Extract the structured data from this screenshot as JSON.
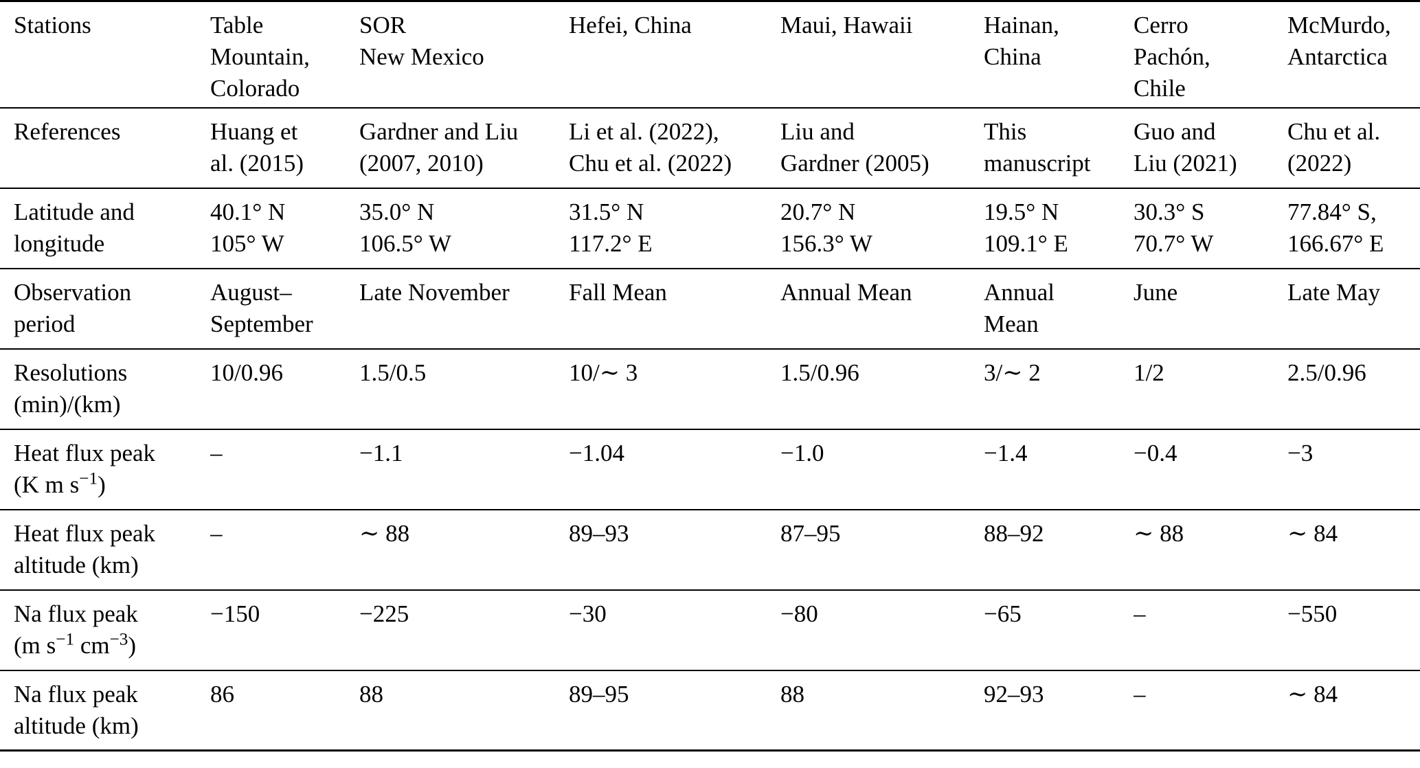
{
  "table": {
    "columns_count": 8,
    "rows": [
      {
        "id": "stations",
        "cells": [
          "Stations",
          "Table\nMountain,\nColorado",
          "SOR\nNew Mexico",
          "Hefei, China",
          "Maui, Hawaii",
          "Hainan,\nChina",
          "Cerro\nPachón,\nChile",
          "McMurdo,\nAntarctica"
        ]
      },
      {
        "id": "references",
        "cells": [
          "References",
          "Huang et\nal. (2015)",
          "Gardner and Liu\n(2007, 2010)",
          "Li et al. (2022),\nChu et al. (2022)",
          "Liu and\nGardner (2005)",
          "This\nmanuscript",
          "Guo and\nLiu (2021)",
          "Chu et al.\n(2022)"
        ]
      },
      {
        "id": "latitude-longitude",
        "cells": [
          "Latitude and\nlongitude",
          "40.1° N\n105° W",
          "35.0° N\n106.5° W",
          "31.5° N\n117.2° E",
          "20.7° N\n156.3° W",
          "19.5° N\n109.1° E",
          "30.3° S\n70.7° W",
          "77.84° S,\n166.67° E"
        ]
      },
      {
        "id": "observation-period",
        "cells": [
          "Observation\nperiod",
          "August–\nSeptember",
          "Late November",
          "Fall Mean",
          "Annual Mean",
          "Annual\nMean",
          "June",
          "Late May"
        ]
      },
      {
        "id": "resolutions",
        "cells": [
          "Resolutions\n(min)/(km)",
          "10/0.96",
          "1.5/0.5",
          "10/∼ 3",
          "1.5/0.96",
          "3/∼ 2",
          "1/2",
          "2.5/0.96"
        ]
      },
      {
        "id": "heat-flux-peak",
        "cells": [
          "Heat flux peak\n(K m s^{−1})",
          "–",
          "−1.1",
          "−1.04",
          "−1.0",
          "−1.4",
          "−0.4",
          "−3"
        ]
      },
      {
        "id": "heat-flux-peak-altitude",
        "cells": [
          "Heat flux peak\naltitude (km)",
          "–",
          "∼ 88",
          "89–93",
          "87–95",
          "88–92",
          "∼ 88",
          "∼ 84"
        ]
      },
      {
        "id": "na-flux-peak",
        "cells": [
          "Na flux peak\n(m s^{−1} cm^{−3})",
          "−150",
          "−225",
          "−30",
          "−80",
          "−65",
          "–",
          "−550"
        ]
      },
      {
        "id": "na-flux-peak-altitude",
        "cells": [
          "Na flux peak\naltitude (km)",
          "86",
          "88",
          "89–95",
          "88",
          "92–93",
          "–",
          "∼ 84"
        ]
      }
    ]
  }
}
